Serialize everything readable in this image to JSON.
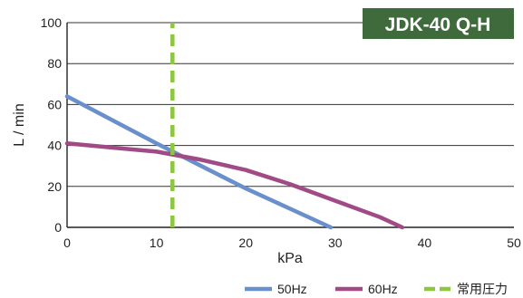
{
  "chart_data": {
    "type": "line",
    "title": "JDK-40 Q-H",
    "title_bg": "#3f6b3c",
    "xlabel": "kPa",
    "ylabel": "L / min",
    "xlim": [
      0,
      50
    ],
    "ylim": [
      0,
      100
    ],
    "x_ticks": [
      0,
      10,
      20,
      30,
      40,
      50
    ],
    "y_ticks": [
      0,
      20,
      40,
      60,
      80,
      100
    ],
    "grid": "horizontal",
    "legend_position": "bottom-right",
    "series": [
      {
        "name": "50Hz",
        "color": "#6a8fcd",
        "style": "solid",
        "x": [
          0,
          10,
          20,
          29.5
        ],
        "y": [
          64,
          41,
          19,
          0
        ]
      },
      {
        "name": "60Hz",
        "color": "#a04a86",
        "style": "solid",
        "x": [
          0,
          5,
          10,
          15,
          20,
          25,
          30,
          35,
          37.5
        ],
        "y": [
          41,
          39,
          37,
          33,
          28,
          21,
          13,
          5,
          0
        ]
      },
      {
        "name": "常用圧力",
        "color": "#8dc63f",
        "style": "dashed",
        "x": [
          11.8,
          11.8
        ],
        "y": [
          0,
          100
        ]
      }
    ]
  }
}
